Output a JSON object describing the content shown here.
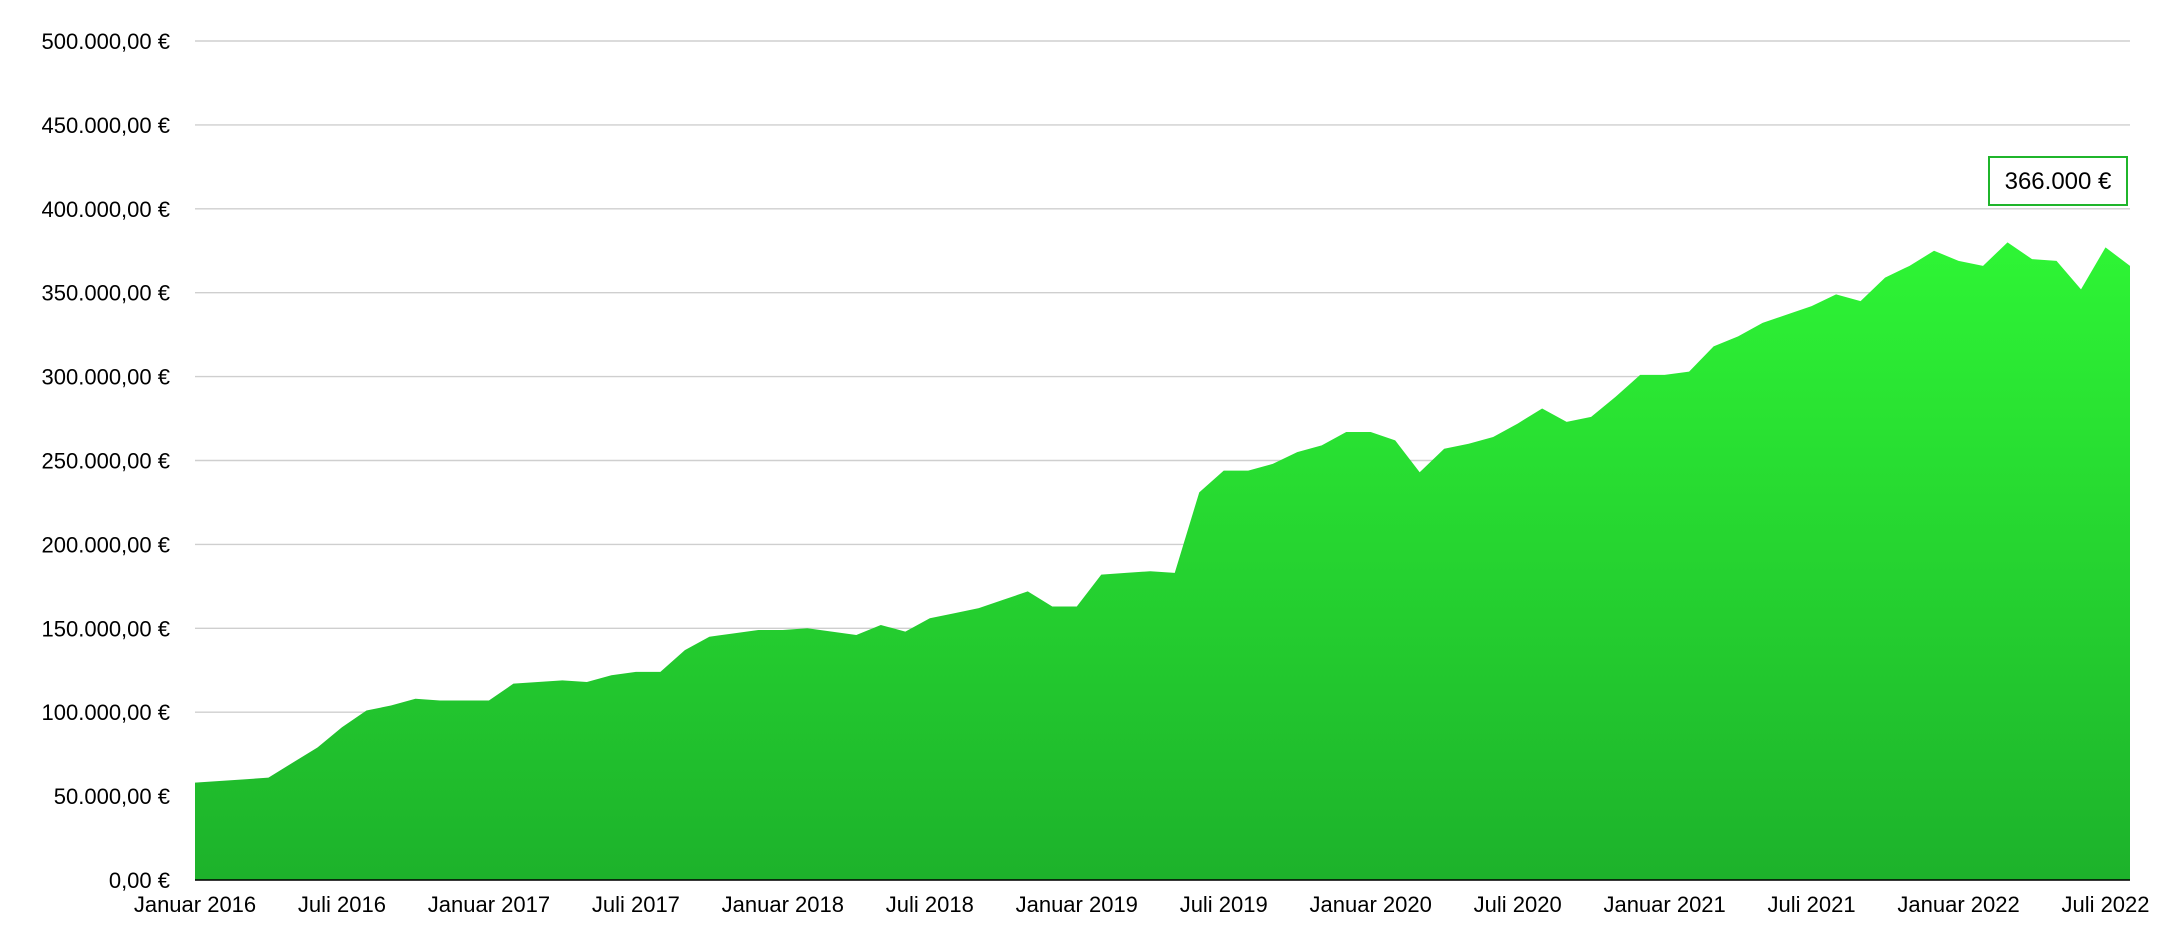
{
  "chart_data": {
    "type": "area",
    "title": "",
    "xlabel": "",
    "ylabel": "",
    "ylim": [
      0,
      500000
    ],
    "grid": true,
    "y_ticks": [
      {
        "value": 0,
        "label": "0,00 €"
      },
      {
        "value": 50000,
        "label": "50.000,00 €"
      },
      {
        "value": 100000,
        "label": "100.000,00 €"
      },
      {
        "value": 150000,
        "label": "150.000,00 €"
      },
      {
        "value": 200000,
        "label": "200.000,00 €"
      },
      {
        "value": 250000,
        "label": "250.000,00 €"
      },
      {
        "value": 300000,
        "label": "300.000,00 €"
      },
      {
        "value": 350000,
        "label": "350.000,00 €"
      },
      {
        "value": 400000,
        "label": "400.000,00 €"
      },
      {
        "value": 450000,
        "label": "450.000,00 €"
      },
      {
        "value": 500000,
        "label": "500.000,00 €"
      }
    ],
    "x_ticks": [
      {
        "value": "2016-01",
        "label": "Januar 2016"
      },
      {
        "value": "2016-07",
        "label": "Juli 2016"
      },
      {
        "value": "2017-01",
        "label": "Januar 2017"
      },
      {
        "value": "2017-07",
        "label": "Juli 2017"
      },
      {
        "value": "2018-01",
        "label": "Januar 2018"
      },
      {
        "value": "2018-07",
        "label": "Juli 2018"
      },
      {
        "value": "2019-01",
        "label": "Januar 2019"
      },
      {
        "value": "2019-07",
        "label": "Juli 2019"
      },
      {
        "value": "2020-01",
        "label": "Januar 2020"
      },
      {
        "value": "2020-07",
        "label": "Juli 2020"
      },
      {
        "value": "2021-01",
        "label": "Januar 2021"
      },
      {
        "value": "2021-07",
        "label": "Juli 2021"
      },
      {
        "value": "2022-01",
        "label": "Januar 2022"
      },
      {
        "value": "2022-07",
        "label": "Juli 2022"
      }
    ],
    "x": [
      "2016-01",
      "2016-02",
      "2016-03",
      "2016-04",
      "2016-05",
      "2016-06",
      "2016-07",
      "2016-08",
      "2016-09",
      "2016-10",
      "2016-11",
      "2016-12",
      "2017-01",
      "2017-02",
      "2017-03",
      "2017-04",
      "2017-05",
      "2017-06",
      "2017-07",
      "2017-08",
      "2017-09",
      "2017-10",
      "2017-11",
      "2017-12",
      "2018-01",
      "2018-02",
      "2018-03",
      "2018-04",
      "2018-05",
      "2018-06",
      "2018-07",
      "2018-08",
      "2018-09",
      "2018-10",
      "2018-11",
      "2018-12",
      "2019-01",
      "2019-02",
      "2019-03",
      "2019-04",
      "2019-05",
      "2019-06",
      "2019-07",
      "2019-08",
      "2019-09",
      "2019-10",
      "2019-11",
      "2019-12",
      "2020-01",
      "2020-02",
      "2020-03",
      "2020-04",
      "2020-05",
      "2020-06",
      "2020-07",
      "2020-08",
      "2020-09",
      "2020-10",
      "2020-11",
      "2020-12",
      "2021-01",
      "2021-02",
      "2021-03",
      "2021-04",
      "2021-05",
      "2021-06",
      "2021-07",
      "2021-08",
      "2021-09",
      "2021-10",
      "2021-11",
      "2021-12",
      "2022-01",
      "2022-02",
      "2022-03",
      "2022-04",
      "2022-05",
      "2022-06",
      "2022-07",
      "2022-08"
    ],
    "series": [
      {
        "values": [
          58000,
          59000,
          60000,
          61000,
          70000,
          79000,
          91000,
          101000,
          104000,
          108000,
          107000,
          107000,
          107000,
          117000,
          118000,
          119000,
          118000,
          122000,
          124000,
          124000,
          137000,
          145000,
          147000,
          149000,
          149000,
          150000,
          148000,
          146000,
          152000,
          148000,
          156000,
          159000,
          162000,
          167000,
          172000,
          163000,
          163000,
          182000,
          183000,
          184000,
          183000,
          231000,
          244000,
          244000,
          248000,
          255000,
          259000,
          267000,
          267000,
          262000,
          243000,
          257000,
          260000,
          264000,
          272000,
          281000,
          273000,
          276000,
          288000,
          301000,
          301000,
          303000,
          318000,
          324000,
          332000,
          337000,
          342000,
          349000,
          345000,
          359000,
          366000,
          375000,
          369000,
          366000,
          380000,
          370000,
          369000,
          352000,
          377000,
          366000
        ]
      }
    ],
    "annotations": [
      {
        "x": "2022-08",
        "text": "366.000 €"
      }
    ],
    "colors": {
      "area_top": "#2ef535",
      "area_bottom": "#1db22b",
      "grid": "#cfcfcf",
      "annotation_border": "#1fb52b"
    }
  }
}
